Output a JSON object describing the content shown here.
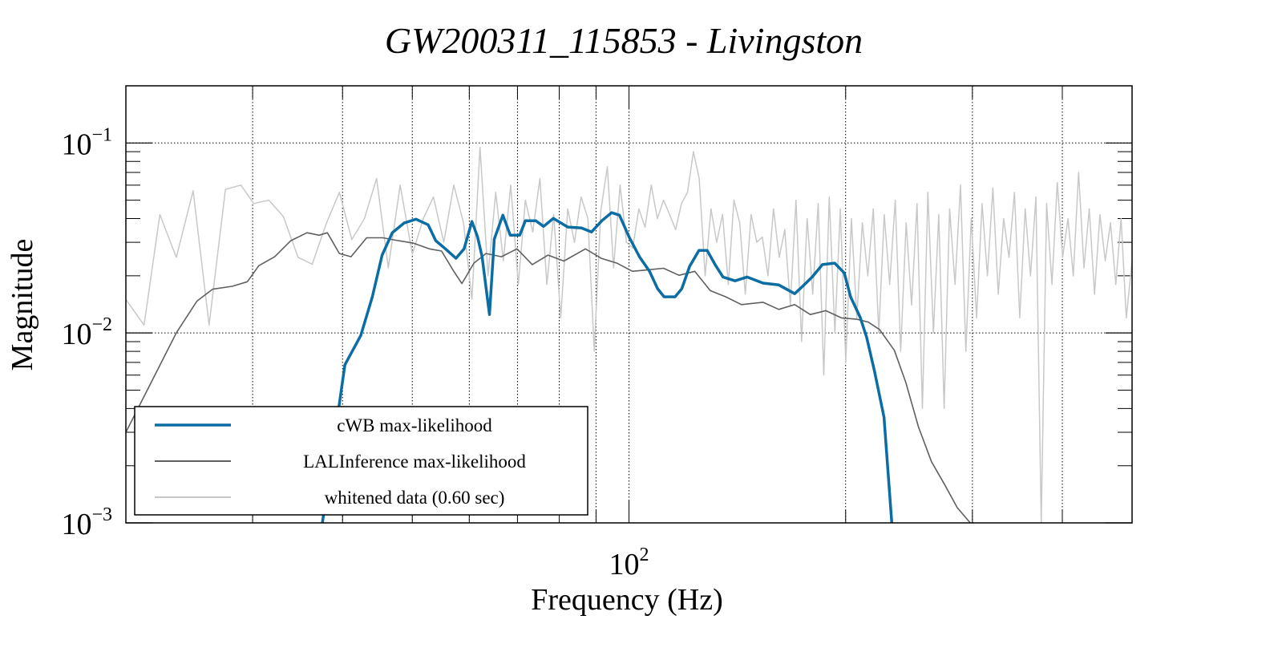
{
  "chart_data": {
    "type": "line",
    "title": "GW200311_115853 - Livingston",
    "xlabel": "Frequency (Hz)",
    "ylabel": "Magnitude",
    "xscale": "log",
    "yscale": "log",
    "xlim": [
      20,
      500
    ],
    "ylim": [
      0.001,
      0.2
    ],
    "grid": true,
    "x_ticks": [
      {
        "value": 100,
        "base": "10",
        "exp": "2"
      }
    ],
    "y_ticks": [
      {
        "value": 0.1,
        "base": "10",
        "exp": "−1"
      },
      {
        "value": 0.01,
        "base": "10",
        "exp": "−2"
      },
      {
        "value": 0.001,
        "base": "10",
        "exp": "−3"
      }
    ],
    "x_gridlines": [
      30,
      40,
      50,
      60,
      70,
      80,
      90,
      100,
      200,
      300,
      400
    ],
    "legend_position": "lower-left",
    "series": [
      {
        "name": "cWB max-likelihood",
        "color": "#0b6da3",
        "x": [
          37.5,
          40.3,
          42.4,
          44.0,
          45.4,
          46.9,
          48.7,
          50.6,
          52.6,
          53.9,
          55.6,
          57.5,
          59.0,
          60.5,
          61.6,
          62.5,
          64.0,
          65.0,
          66.8,
          68.4,
          70.5,
          71.8,
          74.2,
          76.1,
          78.5,
          82.2,
          85.9,
          88.7,
          91.7,
          94.6,
          97.0,
          100,
          103.4,
          106.8,
          109.6,
          111.9,
          115.9,
          118.4,
          121.4,
          125.1,
          128.4,
          131.7,
          135.1,
          140.4,
          145.9,
          153.5,
          161.5,
          169.9,
          174.3,
          179.7,
          185.7,
          193.1,
          199.1,
          203.2,
          209.5,
          213.9,
          219.3,
          226.1,
          231.8
        ],
        "y": [
          0.001,
          0.0068,
          0.0097,
          0.0155,
          0.0257,
          0.0337,
          0.0379,
          0.0397,
          0.0371,
          0.0306,
          0.0277,
          0.0247,
          0.0277,
          0.0386,
          0.0321,
          0.0252,
          0.0125,
          0.0312,
          0.0417,
          0.0327,
          0.0327,
          0.039,
          0.039,
          0.0364,
          0.0401,
          0.0361,
          0.0357,
          0.034,
          0.039,
          0.043,
          0.0417,
          0.0321,
          0.0252,
          0.0211,
          0.0171,
          0.0155,
          0.0155,
          0.0171,
          0.0224,
          0.0272,
          0.0272,
          0.0229,
          0.0197,
          0.0188,
          0.0197,
          0.0183,
          0.0179,
          0.0161,
          0.0176,
          0.0197,
          0.0229,
          0.0233,
          0.0207,
          0.0155,
          0.0121,
          0.0095,
          0.0063,
          0.0036,
          0.001
        ]
      },
      {
        "name": "LALInference max-likelihood",
        "color": "#606060",
        "x": [
          20.0,
          23.5,
          25.1,
          26.4,
          28.1,
          29.5,
          30.6,
          32.2,
          33.9,
          35.7,
          37.1,
          38.1,
          39.6,
          41.1,
          43.2,
          45.5,
          47.8,
          50.2,
          52.8,
          54.9,
          57.1,
          58.6,
          60.9,
          63.3,
          66.5,
          69.9,
          73.4,
          77.2,
          81.2,
          87.0,
          91.5,
          96.2,
          101.1,
          106.3,
          111.7,
          117.4,
          123.4,
          129.7,
          136.3,
          143.3,
          153.5,
          161.5,
          169.9,
          178.6,
          187.7,
          197.3,
          207.4,
          215.1,
          223.0,
          233.7,
          242.4,
          252.5,
          263.2,
          274.3,
          285.9,
          298.0,
          314.6
        ],
        "y": [
          0.003,
          0.01,
          0.0147,
          0.017,
          0.0176,
          0.0186,
          0.0226,
          0.0252,
          0.0306,
          0.0337,
          0.0327,
          0.0337,
          0.0262,
          0.0252,
          0.0317,
          0.0317,
          0.0306,
          0.0297,
          0.0277,
          0.027,
          0.0211,
          0.0182,
          0.0233,
          0.0262,
          0.0252,
          0.0277,
          0.0229,
          0.0257,
          0.0239,
          0.0277,
          0.0247,
          0.0233,
          0.0211,
          0.0215,
          0.0219,
          0.0201,
          0.0211,
          0.0167,
          0.0155,
          0.0141,
          0.0145,
          0.0133,
          0.0141,
          0.0125,
          0.0131,
          0.012,
          0.0118,
          0.0114,
          0.0104,
          0.0081,
          0.0055,
          0.0032,
          0.0021,
          0.0016,
          0.0012,
          0.001,
          0.0009
        ]
      },
      {
        "name": "whitened data (0.60 sec)",
        "color": "#c8c8c8",
        "x": [
          20.0,
          21.2,
          22.3,
          23.5,
          24.8,
          26.1,
          27.5,
          28.9,
          30.1,
          31.6,
          33.1,
          34.7,
          36.3,
          38.0,
          39.6,
          41.2,
          42.9,
          44.6,
          46.3,
          48.1,
          50.0,
          51.8,
          53.5,
          55.3,
          57.1,
          58.9,
          60.5,
          62.1,
          63.7,
          65.3,
          66.9,
          68.5,
          70.2,
          71.8,
          73.5,
          75.2,
          76.9,
          78.6,
          80.4,
          82.2,
          84.0,
          85.8,
          87.7,
          89.5,
          91.4,
          93.3,
          95.2,
          97.2,
          99.2,
          101.2,
          103.2,
          105.3,
          107.4,
          109.5,
          111.7,
          113.9,
          116.1,
          118.3,
          120.6,
          122.9,
          125.2,
          127.6,
          130.0,
          132.4,
          134.9,
          137.4,
          139.9,
          142.5,
          145.1,
          147.8,
          150.5,
          153.2,
          156.0,
          158.8,
          161.7,
          164.6,
          167.6,
          170.6,
          173.7,
          176.8,
          180.0,
          183.2,
          186.5,
          189.8,
          193.2,
          196.6,
          200.1,
          203.7,
          207.3,
          211.0,
          214.7,
          218.5,
          222.4,
          226.3,
          230.3,
          234.4,
          238.5,
          242.7,
          247.0,
          251.3,
          255.7,
          260.2,
          264.8,
          269.4,
          274.1,
          278.9,
          283.8,
          288.8,
          293.8,
          298.9,
          304.1,
          309.4,
          314.8,
          320.3,
          325.9,
          331.5,
          337.3,
          343.2,
          349.1,
          355.2,
          361.3,
          367.6,
          373.9,
          380.4,
          387.0,
          393.6,
          400.4,
          407.3,
          414.3,
          421.4,
          428.7,
          436.0,
          443.5,
          451.1,
          458.8,
          466.7,
          474.6,
          482.7,
          490.9,
          500.0
        ],
        "y": [
          0.015,
          0.011,
          0.042,
          0.025,
          0.056,
          0.011,
          0.057,
          0.06,
          0.048,
          0.05,
          0.041,
          0.025,
          0.023,
          0.038,
          0.055,
          0.031,
          0.04,
          0.065,
          0.022,
          0.06,
          0.026,
          0.04,
          0.052,
          0.03,
          0.06,
          0.038,
          0.015,
          0.095,
          0.02,
          0.055,
          0.024,
          0.06,
          0.018,
          0.05,
          0.034,
          0.065,
          0.018,
          0.042,
          0.012,
          0.045,
          0.03,
          0.052,
          0.04,
          0.008,
          0.044,
          0.075,
          0.022,
          0.06,
          0.03,
          0.028,
          0.045,
          0.036,
          0.06,
          0.04,
          0.05,
          0.042,
          0.035,
          0.048,
          0.055,
          0.09,
          0.065,
          0.02,
          0.045,
          0.03,
          0.042,
          0.018,
          0.05,
          0.038,
          0.016,
          0.042,
          0.03,
          0.032,
          0.02,
          0.045,
          0.025,
          0.035,
          0.014,
          0.05,
          0.009,
          0.04,
          0.016,
          0.048,
          0.006,
          0.052,
          0.01,
          0.045,
          0.007,
          0.04,
          0.012,
          0.038,
          0.02,
          0.045,
          0.01,
          0.042,
          0.018,
          0.05,
          0.008,
          0.038,
          0.014,
          0.048,
          0.004,
          0.055,
          0.01,
          0.042,
          0.004,
          0.045,
          0.018,
          0.06,
          0.008,
          0.04,
          0.012,
          0.048,
          0.02,
          0.058,
          0.016,
          0.04,
          0.025,
          0.055,
          0.012,
          0.045,
          0.02,
          0.052,
          0.001,
          0.048,
          0.018,
          0.062,
          0.025,
          0.04,
          0.02,
          0.07,
          0.022,
          0.045,
          0.016,
          0.042,
          0.024,
          0.038,
          0.018,
          0.04,
          0.012,
          0.024
        ]
      }
    ]
  }
}
